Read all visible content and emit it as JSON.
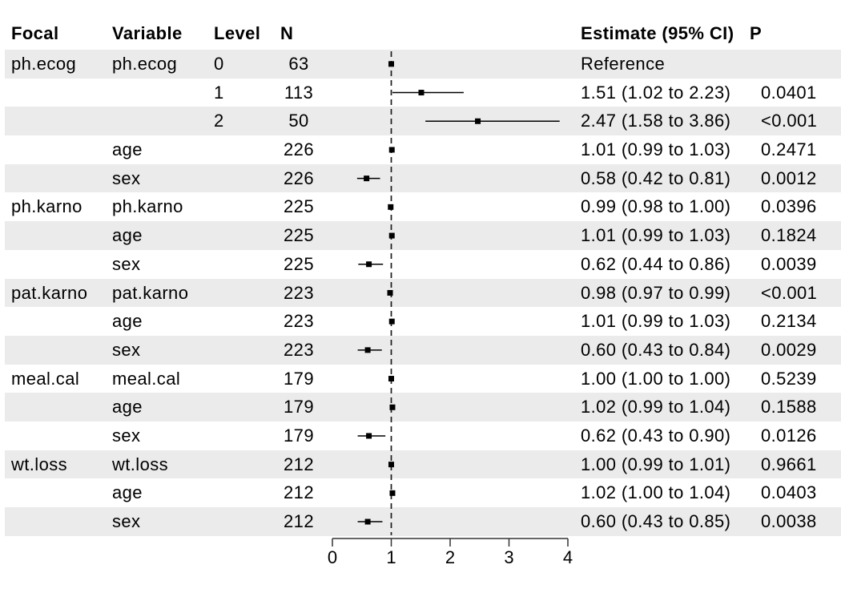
{
  "table": {
    "headers": {
      "focal": "Focal",
      "variable": "Variable",
      "level": "Level",
      "n": "N",
      "estimate": "Estimate (95% CI)",
      "p": "P"
    }
  },
  "colors": {
    "stripe": "#ebebeb",
    "text": "#000000",
    "marker": "#000000",
    "axis": "#333333"
  },
  "chart_data": {
    "type": "forest",
    "title": "",
    "xlabel": "",
    "ylabel": "",
    "x_axis": {
      "range": [
        0,
        4
      ],
      "ticks": [
        0,
        1,
        2,
        3,
        4
      ],
      "reference_line": 1
    },
    "legend": "none",
    "grid": "off",
    "rows": [
      {
        "focal": "ph.ecog",
        "variable": "ph.ecog",
        "level": "0",
        "n": "63",
        "estimate_label": "Reference",
        "p": "",
        "est": 1.0,
        "lo": null,
        "hi": null,
        "reference": true
      },
      {
        "focal": "",
        "variable": "",
        "level": "1",
        "n": "113",
        "estimate_label": "1.51 (1.02 to 2.23)",
        "p": "0.0401",
        "est": 1.51,
        "lo": 1.02,
        "hi": 2.23
      },
      {
        "focal": "",
        "variable": "",
        "level": "2",
        "n": "50",
        "estimate_label": "2.47 (1.58 to 3.86)",
        "p": "<0.001",
        "est": 2.47,
        "lo": 1.58,
        "hi": 3.86
      },
      {
        "focal": "",
        "variable": "age",
        "level": "",
        "n": "226",
        "estimate_label": "1.01 (0.99 to 1.03)",
        "p": "0.2471",
        "est": 1.01,
        "lo": 0.99,
        "hi": 1.03
      },
      {
        "focal": "",
        "variable": "sex",
        "level": "",
        "n": "226",
        "estimate_label": "0.58 (0.42 to 0.81)",
        "p": "0.0012",
        "est": 0.58,
        "lo": 0.42,
        "hi": 0.81
      },
      {
        "focal": "ph.karno",
        "variable": "ph.karno",
        "level": "",
        "n": "225",
        "estimate_label": "0.99 (0.98 to 1.00)",
        "p": "0.0396",
        "est": 0.99,
        "lo": 0.98,
        "hi": 1.0
      },
      {
        "focal": "",
        "variable": "age",
        "level": "",
        "n": "225",
        "estimate_label": "1.01 (0.99 to 1.03)",
        "p": "0.1824",
        "est": 1.01,
        "lo": 0.99,
        "hi": 1.03
      },
      {
        "focal": "",
        "variable": "sex",
        "level": "",
        "n": "225",
        "estimate_label": "0.62 (0.44 to 0.86)",
        "p": "0.0039",
        "est": 0.62,
        "lo": 0.44,
        "hi": 0.86
      },
      {
        "focal": "pat.karno",
        "variable": "pat.karno",
        "level": "",
        "n": "223",
        "estimate_label": "0.98 (0.97 to 0.99)",
        "p": "<0.001",
        "est": 0.98,
        "lo": 0.97,
        "hi": 0.99
      },
      {
        "focal": "",
        "variable": "age",
        "level": "",
        "n": "223",
        "estimate_label": "1.01 (0.99 to 1.03)",
        "p": "0.2134",
        "est": 1.01,
        "lo": 0.99,
        "hi": 1.03
      },
      {
        "focal": "",
        "variable": "sex",
        "level": "",
        "n": "223",
        "estimate_label": "0.60 (0.43 to 0.84)",
        "p": "0.0029",
        "est": 0.6,
        "lo": 0.43,
        "hi": 0.84
      },
      {
        "focal": "meal.cal",
        "variable": "meal.cal",
        "level": "",
        "n": "179",
        "estimate_label": "1.00 (1.00 to 1.00)",
        "p": "0.5239",
        "est": 1.0,
        "lo": 1.0,
        "hi": 1.0
      },
      {
        "focal": "",
        "variable": "age",
        "level": "",
        "n": "179",
        "estimate_label": "1.02 (0.99 to 1.04)",
        "p": "0.1588",
        "est": 1.02,
        "lo": 0.99,
        "hi": 1.04
      },
      {
        "focal": "",
        "variable": "sex",
        "level": "",
        "n": "179",
        "estimate_label": "0.62 (0.43 to 0.90)",
        "p": "0.0126",
        "est": 0.62,
        "lo": 0.43,
        "hi": 0.9
      },
      {
        "focal": "wt.loss",
        "variable": "wt.loss",
        "level": "",
        "n": "212",
        "estimate_label": "1.00 (0.99 to 1.01)",
        "p": "0.9661",
        "est": 1.0,
        "lo": 0.99,
        "hi": 1.01
      },
      {
        "focal": "",
        "variable": "age",
        "level": "",
        "n": "212",
        "estimate_label": "1.02 (1.00 to 1.04)",
        "p": "0.0403",
        "est": 1.02,
        "lo": 1.0,
        "hi": 1.04
      },
      {
        "focal": "",
        "variable": "sex",
        "level": "",
        "n": "212",
        "estimate_label": "0.60 (0.43 to 0.85)",
        "p": "0.0038",
        "est": 0.6,
        "lo": 0.43,
        "hi": 0.85
      }
    ]
  }
}
